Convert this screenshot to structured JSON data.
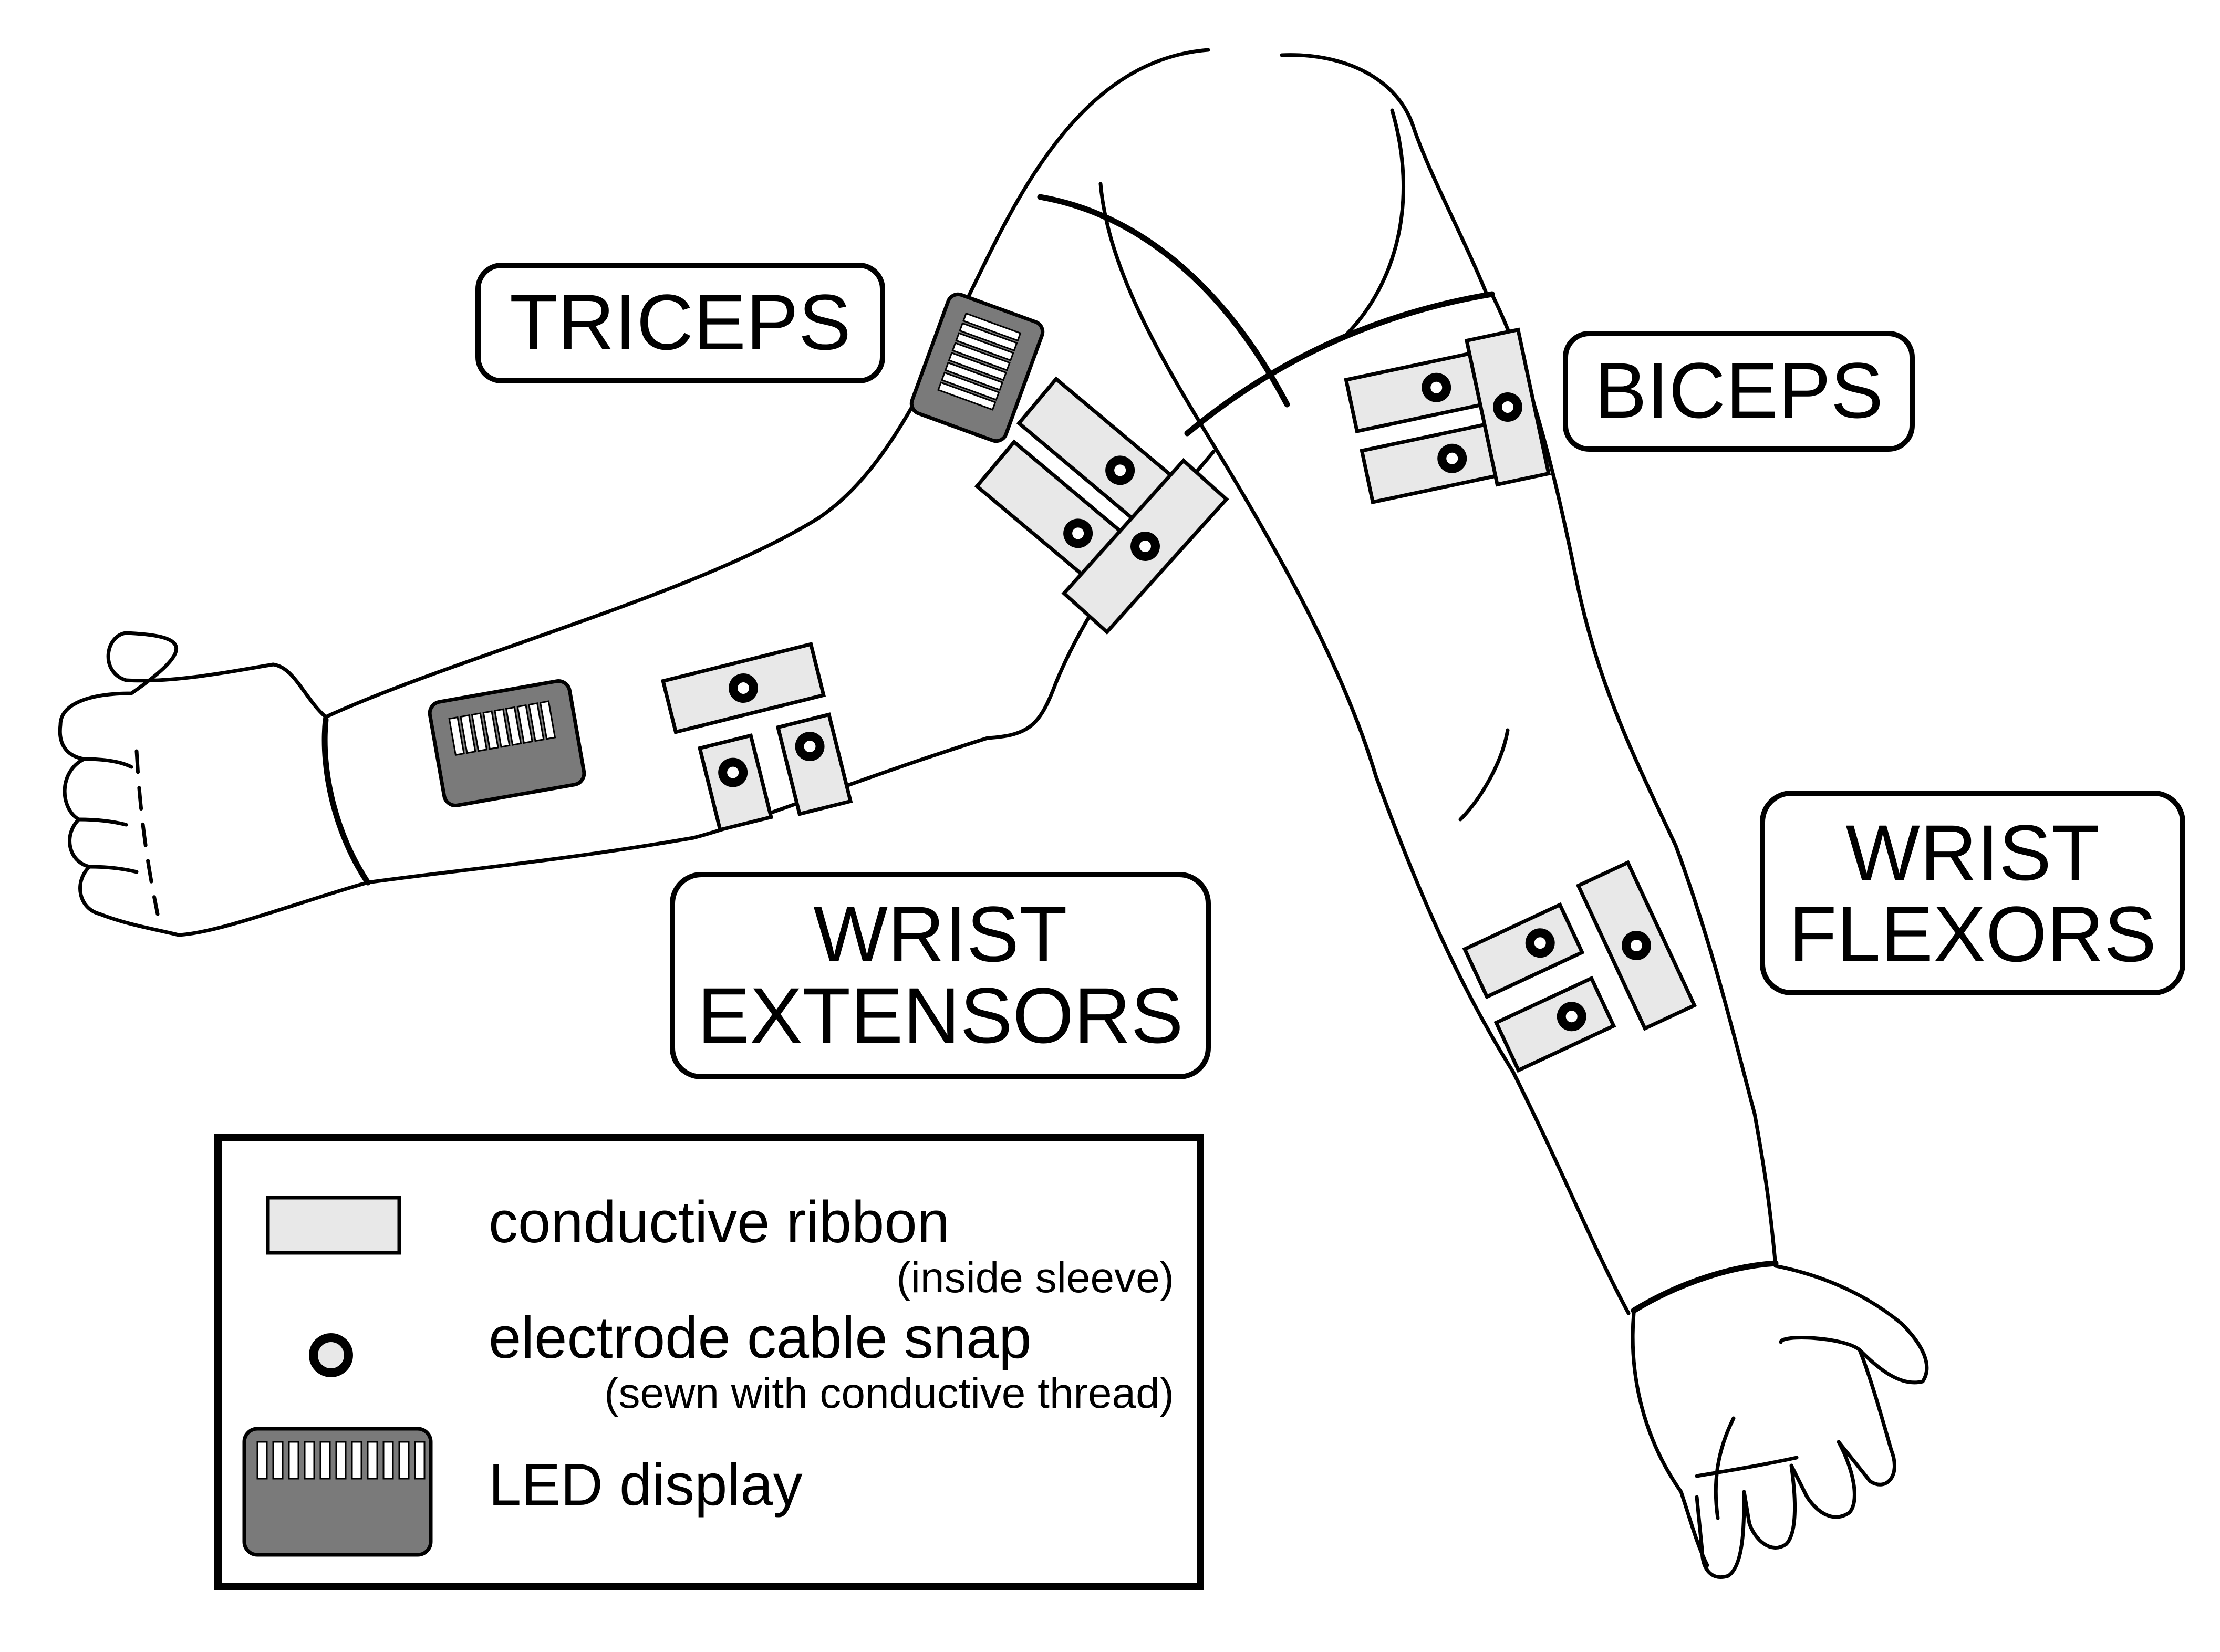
{
  "labels": {
    "triceps": "TRICEPS",
    "biceps": "BICEPS",
    "wrist_extensors_line1": "WRIST",
    "wrist_extensors_line2": "EXTENSORS",
    "wrist_flexors_line1": "WRIST",
    "wrist_flexors_line2": "FLEXORS"
  },
  "legend": {
    "ribbon_label": "conductive ribbon",
    "ribbon_note": "(inside sleeve)",
    "snap_label": "electrode cable snap",
    "snap_note": "(sewn with conductive thread)",
    "led_label": "LED display"
  },
  "colors": {
    "ribbon_fill": "#e8e8e8",
    "led_fill": "#7a7a7a",
    "outline": "#000000"
  }
}
